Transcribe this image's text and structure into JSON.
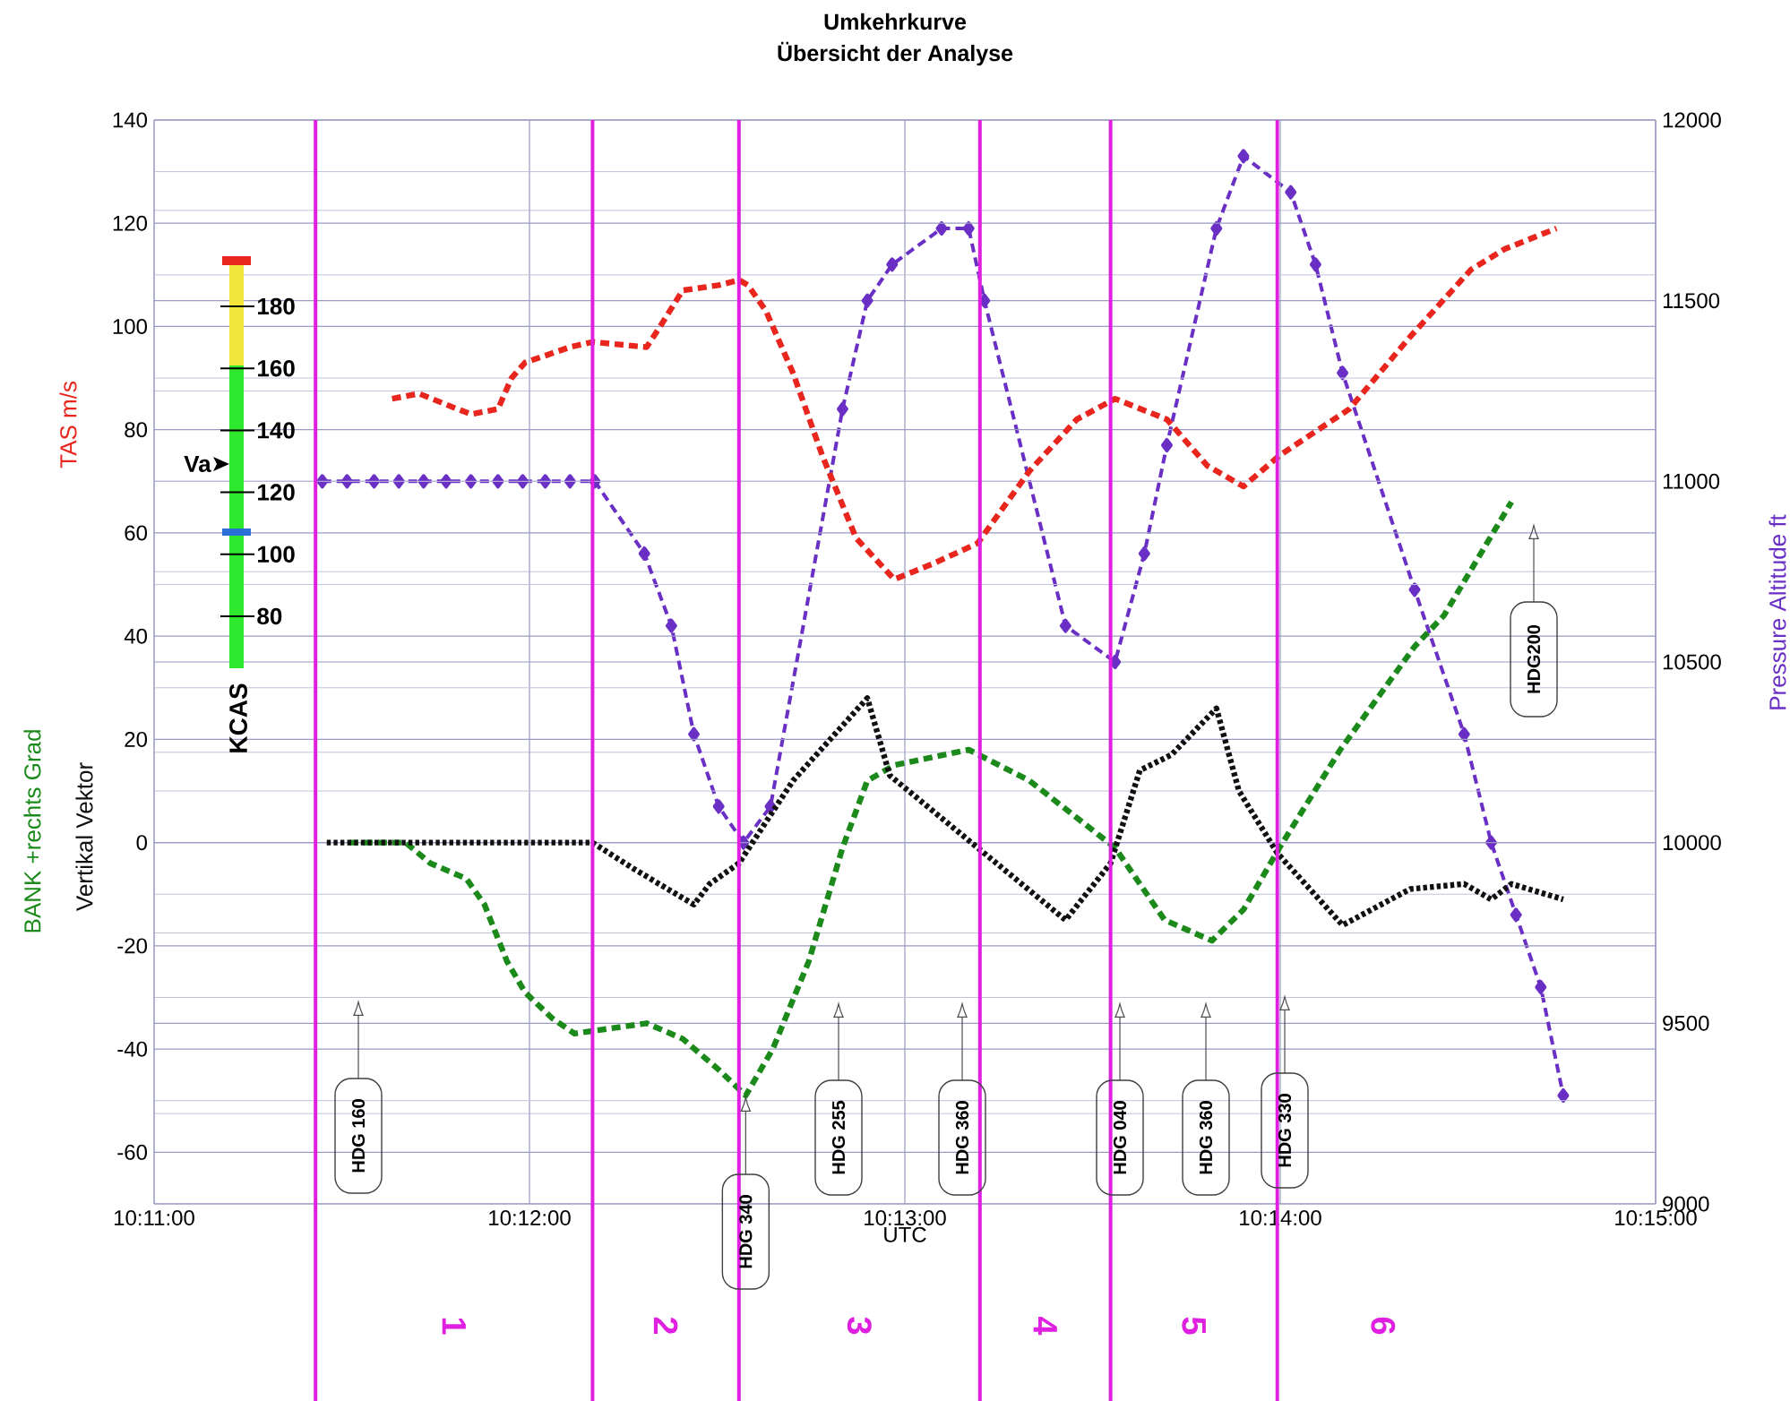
{
  "chart_data": {
    "type": "line",
    "title": "Umkehrkurve",
    "subtitle": "Übersicht der Analyse",
    "xlabel": "UTC",
    "xlim": [
      10.183333,
      10.25
    ],
    "xticks": [
      {
        "value": 10.183333,
        "label": "10:11:00"
      },
      {
        "value": 10.2,
        "label": "10:12:00"
      },
      {
        "value": 10.216667,
        "label": "10:13:00"
      },
      {
        "value": 10.233333,
        "label": "10:14:00"
      },
      {
        "value": 10.25,
        "label": "10:15:00"
      }
    ],
    "ylim": [
      -70,
      140
    ],
    "yticks": [
      -60,
      -40,
      -20,
      0,
      20,
      40,
      60,
      80,
      100,
      120,
      140
    ],
    "y2lim": [
      9000,
      12000
    ],
    "y2ticks": [
      9000,
      9500,
      10000,
      10500,
      11000,
      11500,
      12000
    ],
    "grid": true,
    "series": [
      {
        "name": "TAS m/s",
        "color": "#e8261e",
        "line_style": "dashed",
        "x": [
          10.1939,
          10.1951,
          10.1968,
          10.1974,
          10.1986,
          10.1992,
          10.1998,
          10.2018,
          10.2028,
          10.2052,
          10.2058,
          10.2068,
          10.2084,
          10.2093,
          10.2097,
          10.2105,
          10.2117,
          10.213,
          10.2145,
          10.2162,
          10.2179,
          10.2199,
          10.2222,
          10.2243,
          10.226,
          10.2283,
          10.2301,
          10.2317,
          10.2333,
          10.2364,
          10.2391,
          10.2418,
          10.2433,
          10.2456
        ],
        "values": [
          86,
          87,
          84,
          83,
          84,
          90,
          93,
          96,
          97,
          96,
          100,
          107,
          108,
          109,
          108,
          103,
          91,
          75,
          59,
          51,
          54,
          58,
          72,
          82,
          86,
          82,
          73,
          69,
          75,
          84,
          98,
          111,
          115,
          119
        ]
      },
      {
        "name": "BANK +rechts Grad",
        "color": "#1b8a1b",
        "line_style": "dashed",
        "x": [
          10.192,
          10.1945,
          10.1956,
          10.1972,
          10.198,
          10.199,
          10.1998,
          10.201,
          10.202,
          10.2036,
          10.2052,
          10.2068,
          10.2084,
          10.2096,
          10.2108,
          10.2124,
          10.2139,
          10.215,
          10.2162,
          10.2195,
          10.2222,
          10.226,
          10.2282,
          10.2303,
          10.2317,
          10.2333,
          10.236,
          10.2393,
          10.2406,
          10.2436
        ],
        "values": [
          0,
          0,
          -4,
          -7,
          -12,
          -23,
          -29,
          -34,
          -37,
          -36,
          -35,
          -38,
          -44,
          -49,
          -40,
          -23,
          -1,
          12,
          15,
          18,
          12,
          -1,
          -15,
          -19,
          -13,
          -1,
          18,
          38,
          44,
          66
        ]
      },
      {
        "name": "Vertikal Vektor",
        "color": "#111111",
        "line_style": "dotted",
        "x": [
          10.191,
          10.2028,
          10.2046,
          10.2073,
          10.208,
          10.2093,
          10.2117,
          10.215,
          10.216,
          10.2199,
          10.2238,
          10.2258,
          10.2271,
          10.2285,
          10.2305,
          10.2315,
          10.2332,
          10.2361,
          10.2391,
          10.2415,
          10.2427,
          10.2436,
          10.2459
        ],
        "values": [
          0,
          0,
          -5,
          -12,
          -8,
          -4,
          12,
          28,
          13,
          -1,
          -15,
          -4,
          14,
          17,
          26,
          10,
          -2,
          -16,
          -9,
          -8,
          -11,
          -8,
          -11
        ]
      },
      {
        "name": "Pressure Altitude ft",
        "color": "#6a2fc4",
        "axis": "y2",
        "line_style": "dashed",
        "marker": "diamond",
        "x": [
          10.1908,
          10.1919,
          10.1931,
          10.1942,
          10.1953,
          10.1963,
          10.1974,
          10.1986,
          10.1997,
          10.2007,
          10.2018,
          10.2029,
          10.2051,
          10.2063,
          10.2073,
          10.2084,
          10.2095,
          10.2107,
          10.2139,
          10.215,
          10.2161,
          10.2183,
          10.2195,
          10.2202,
          10.2238,
          10.226,
          10.2273,
          10.2283,
          10.2305,
          10.2317,
          10.2338,
          10.2349,
          10.2361,
          10.2393,
          10.2415,
          10.2427,
          10.2438,
          10.2449,
          10.2459
        ],
        "values": [
          11000,
          11000,
          11000,
          11000,
          11000,
          11000,
          11000,
          11000,
          11000,
          11000,
          11000,
          11000,
          10800,
          10600,
          10300,
          10100,
          10000,
          10100,
          11200,
          11500,
          11600,
          11700,
          11700,
          11500,
          10600,
          10500,
          10800,
          11100,
          11700,
          11900,
          11800,
          11600,
          11300,
          10700,
          10300,
          10000,
          9800,
          9600,
          9300
        ]
      }
    ],
    "ref_lines": [
      {
        "axis": "x",
        "value": 10.1905,
        "color": "#e020e0"
      },
      {
        "axis": "x",
        "value": 10.2028,
        "color": "#e020e0"
      },
      {
        "axis": "x",
        "value": 10.2093,
        "color": "#e020e0"
      },
      {
        "axis": "x",
        "value": 10.22,
        "color": "#e020e0"
      },
      {
        "axis": "x",
        "value": 10.2258,
        "color": "#e020e0"
      },
      {
        "axis": "x",
        "value": 10.2332,
        "color": "#e020e0"
      }
    ],
    "annotations": [
      "1",
      "2",
      "3",
      "4",
      "5",
      "6",
      "HDG 160",
      {
        "text": "HDG 340",
        "x": 10.2096,
        "y": -49
      },
      "HDG 255",
      "HDG 360",
      "HDG 040",
      "HDG 360",
      "HDG 330",
      "HDG200",
      "180",
      "160",
      "140",
      "120",
      "100",
      "80",
      "Va",
      "KCAS"
    ]
  }
}
